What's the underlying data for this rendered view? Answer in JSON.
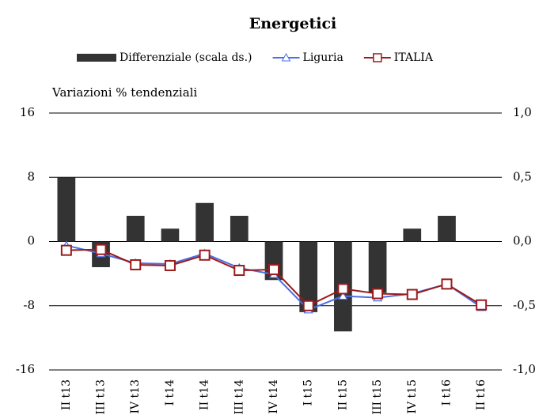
{
  "chart_data": {
    "type": "bar-line",
    "title": "Energetici",
    "y_label": "Variazioni % tendenziali",
    "categories": [
      "II t13",
      "III t13",
      "IV t13",
      "I t14",
      "II t14",
      "III t14",
      "IV t14",
      "I t15",
      "II t15",
      "III t15",
      "IV t15",
      "I t16",
      "II t16"
    ],
    "series": [
      {
        "name": "Differenziale (scala ds.)",
        "type": "bar",
        "axis": "y2",
        "color": "#333333",
        "values": [
          0.5,
          -0.2,
          0.2,
          0.1,
          0.3,
          0.2,
          -0.3,
          -0.55,
          -0.7,
          -0.4,
          0.1,
          0.2,
          0
        ]
      },
      {
        "name": "Liguria",
        "type": "line",
        "marker": "triangle",
        "color": "#4a6fe3",
        "values": [
          -0.5,
          -1.5,
          -2.7,
          -2.8,
          -1.5,
          -3.3,
          -4.1,
          -8.5,
          -6.8,
          -7.0,
          -6.5,
          -5.3,
          -8.2
        ]
      },
      {
        "name": "ITALIA",
        "type": "line",
        "marker": "square",
        "color": "#9b1b1b",
        "values": [
          -1.1,
          -1.0,
          -2.9,
          -3.0,
          -1.7,
          -3.6,
          -3.5,
          -8.0,
          -5.9,
          -6.5,
          -6.6,
          -5.3,
          -7.9
        ]
      }
    ],
    "ylim": [
      -16,
      16
    ],
    "yticks": [
      -16,
      -8,
      0,
      8,
      16
    ],
    "y2lim": [
      -1,
      1
    ],
    "y2ticks": [
      {
        "value": -1,
        "label": "-1,0"
      },
      {
        "value": -0.5,
        "label": "-0,5"
      },
      {
        "value": 0,
        "label": "0,0"
      },
      {
        "value": 0.5,
        "label": "0,5"
      },
      {
        "value": 1,
        "label": "1,0"
      }
    ],
    "grid": true,
    "legend": "top"
  }
}
